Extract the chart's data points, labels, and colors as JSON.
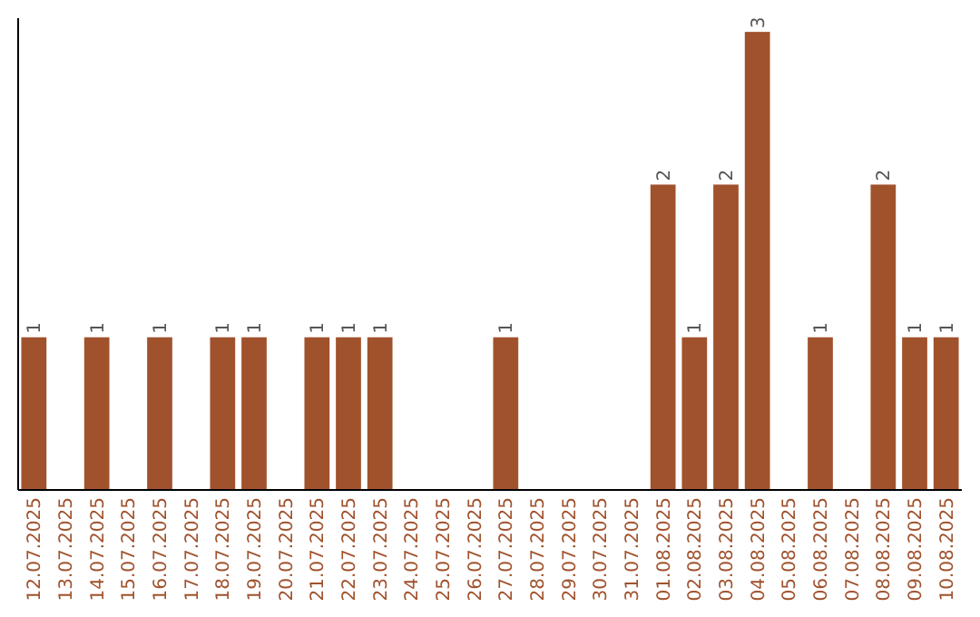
{
  "chart_data": {
    "type": "bar",
    "categories": [
      "12.07.2025",
      "13.07.2025",
      "14.07.2025",
      "15.07.2025",
      "16.07.2025",
      "17.07.2025",
      "18.07.2025",
      "19.07.2025",
      "20.07.2025",
      "21.07.2025",
      "22.07.2025",
      "23.07.2025",
      "24.07.2025",
      "25.07.2025",
      "26.07.2025",
      "27.07.2025",
      "28.07.2025",
      "29.07.2025",
      "30.07.2025",
      "31.07.2025",
      "01.08.2025",
      "02.08.2025",
      "03.08.2025",
      "04.08.2025",
      "05.08.2025",
      "06.08.2025",
      "07.08.2025",
      "08.08.2025",
      "09.08.2025",
      "10.08.2025"
    ],
    "values": [
      1,
      0,
      1,
      0,
      1,
      0,
      1,
      1,
      0,
      1,
      1,
      1,
      0,
      0,
      0,
      1,
      0,
      0,
      0,
      0,
      2,
      1,
      2,
      3,
      0,
      1,
      0,
      2,
      1,
      1
    ],
    "value_labels": [
      "1",
      null,
      "1",
      null,
      "1",
      null,
      "1",
      "1",
      null,
      "1",
      "1",
      "1",
      null,
      null,
      null,
      "1",
      null,
      null,
      null,
      null,
      "2",
      "1",
      "2",
      "3",
      null,
      "1",
      null,
      "2",
      "1",
      "1"
    ],
    "color": "#a0522d",
    "tick_labels": "x"
  }
}
